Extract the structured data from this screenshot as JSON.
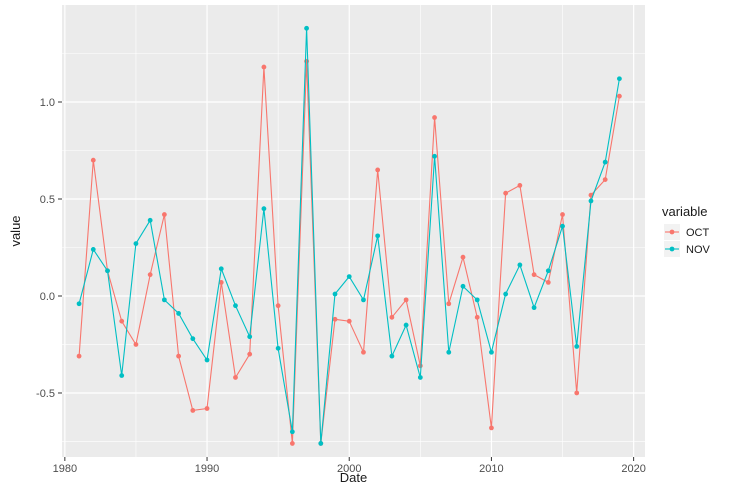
{
  "chart_data": {
    "type": "line",
    "xlabel": "Date",
    "ylabel": "value",
    "xlim": [
      1979.8,
      2020.8
    ],
    "ylim": [
      -0.83,
      1.5
    ],
    "x_ticks": [
      1980,
      1990,
      2000,
      2010,
      2020
    ],
    "y_ticks": [
      -0.5,
      0.0,
      0.5,
      1.0
    ],
    "y_tick_labels": [
      "-0.5",
      "0.0",
      "0.5",
      "1.0"
    ],
    "grid": true,
    "legend": {
      "title": "variable",
      "position": "right"
    },
    "x": [
      1981,
      1982,
      1983,
      1984,
      1985,
      1986,
      1987,
      1988,
      1989,
      1990,
      1991,
      1992,
      1993,
      1994,
      1995,
      1996,
      1997,
      1998,
      1999,
      2000,
      2001,
      2002,
      2003,
      2004,
      2005,
      2006,
      2007,
      2008,
      2009,
      2010,
      2011,
      2012,
      2013,
      2014,
      2015,
      2016,
      2017,
      2018,
      2019
    ],
    "series": [
      {
        "name": "OCT",
        "color": "#F8766D",
        "values": [
          -0.31,
          0.7,
          0.13,
          -0.13,
          -0.25,
          0.11,
          0.42,
          -0.31,
          -0.59,
          -0.58,
          0.07,
          -0.42,
          -0.3,
          1.18,
          -0.05,
          -0.76,
          1.21,
          -0.76,
          -0.12,
          -0.13,
          -0.29,
          0.65,
          -0.11,
          -0.02,
          -0.36,
          0.92,
          -0.04,
          0.2,
          -0.11,
          -0.68,
          0.53,
          0.57,
          0.11,
          0.07,
          0.42,
          -0.5,
          0.52,
          0.6,
          1.03
        ]
      },
      {
        "name": "NOV",
        "color": "#00BFC4",
        "values": [
          -0.04,
          0.24,
          0.13,
          -0.41,
          0.27,
          0.39,
          -0.02,
          -0.09,
          -0.22,
          -0.33,
          0.14,
          -0.05,
          -0.21,
          0.45,
          -0.27,
          -0.7,
          1.38,
          -0.76,
          0.01,
          0.1,
          -0.02,
          0.31,
          -0.31,
          -0.15,
          -0.42,
          0.72,
          -0.29,
          0.05,
          -0.02,
          -0.29,
          0.01,
          0.16,
          -0.06,
          0.13,
          0.36,
          -0.26,
          0.49,
          0.69,
          1.12
        ]
      }
    ]
  }
}
